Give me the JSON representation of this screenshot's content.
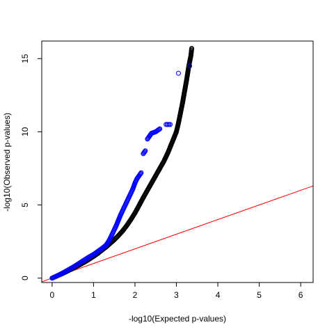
{
  "chart_data": {
    "type": "scatter",
    "title": "",
    "xlabel": "-log10(Expected p-values)",
    "ylabel": "-log10(Observed p-values)",
    "xlim": [
      -0.25,
      6.3
    ],
    "ylim": [
      -0.3,
      16.2
    ],
    "x_ticks": [
      0,
      1,
      2,
      3,
      4,
      5,
      6
    ],
    "y_ticks": [
      0,
      5,
      10,
      15
    ],
    "x_tick_labels": [
      "0",
      "1",
      "2",
      "3",
      "4",
      "5",
      "6"
    ],
    "y_tick_labels": [
      "0",
      "5",
      "10",
      "15"
    ],
    "grid": false,
    "legend": null,
    "reference_line": {
      "name": "",
      "intercept": 0,
      "slope": 1,
      "color": "#ff0000"
    },
    "series": [
      {
        "color": "#000000",
        "marker": "open-circle",
        "x": [
          0,
          0.1,
          0.2,
          0.3,
          0.4,
          0.5,
          0.6,
          0.7,
          0.8,
          0.9,
          1.0,
          1.1,
          1.2,
          1.3,
          1.4,
          1.5,
          1.6,
          1.7,
          1.8,
          1.9,
          2.0,
          2.1,
          2.2,
          2.3,
          2.4,
          2.5,
          2.6,
          2.7,
          2.8,
          2.9,
          3.0,
          3.05,
          3.1,
          3.15,
          3.2,
          3.25,
          3.3,
          3.35,
          3.37
        ],
        "y": [
          0,
          0.12,
          0.25,
          0.38,
          0.52,
          0.66,
          0.81,
          0.96,
          1.12,
          1.3,
          1.48,
          1.68,
          1.9,
          2.12,
          2.37,
          2.62,
          2.9,
          3.22,
          3.58,
          4.0,
          4.45,
          4.97,
          5.5,
          6.0,
          6.5,
          7.0,
          7.5,
          8.0,
          8.6,
          9.3,
          10.0,
          10.6,
          11.3,
          12.0,
          12.8,
          13.6,
          14.5,
          15.2,
          15.7
        ]
      },
      {
        "color": "#0000ff",
        "marker": "open-circle",
        "x": [
          0,
          0.1,
          0.2,
          0.3,
          0.4,
          0.5,
          0.6,
          0.7,
          0.8,
          0.9,
          1.0,
          1.1,
          1.2,
          1.3,
          1.35,
          1.4,
          1.45,
          1.5,
          1.55,
          1.6,
          1.65,
          1.7,
          1.75,
          1.8,
          1.85,
          1.9,
          1.95,
          2.0,
          2.05,
          2.1,
          2.15,
          2.2,
          2.25,
          2.3,
          2.35,
          2.4,
          2.5,
          2.6,
          2.75,
          2.85,
          3.05,
          3.32
        ],
        "y": [
          0,
          0.13,
          0.27,
          0.42,
          0.58,
          0.74,
          0.92,
          1.1,
          1.28,
          1.46,
          1.62,
          1.82,
          2.02,
          2.25,
          2.45,
          2.7,
          3.0,
          3.3,
          3.6,
          3.95,
          4.3,
          4.6,
          4.9,
          5.2,
          5.5,
          5.8,
          6.1,
          6.5,
          6.8,
          7.0,
          7.2,
          8.5,
          8.7,
          9.5,
          9.7,
          9.9,
          10.0,
          10.2,
          10.5,
          10.5,
          14.0,
          14.5
        ]
      }
    ]
  }
}
